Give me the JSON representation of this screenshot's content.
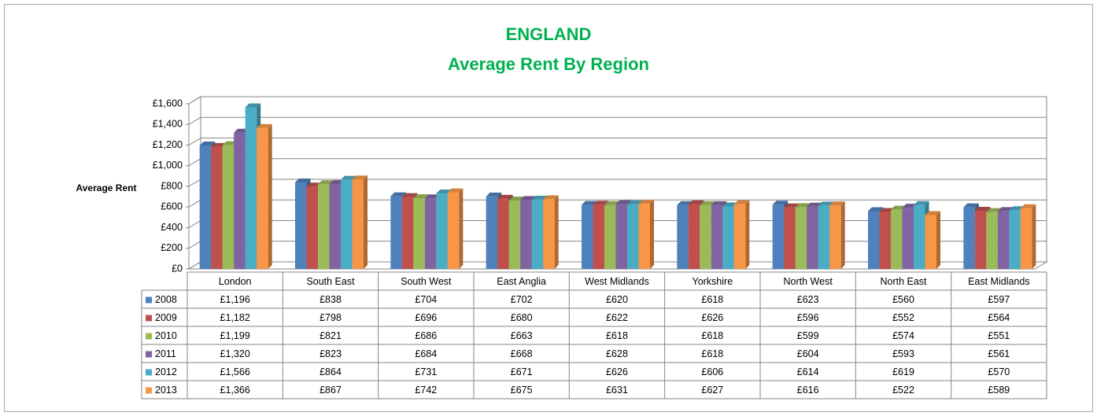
{
  "chart_data": {
    "type": "bar",
    "title": "ENGLAND",
    "subtitle": "Average Rent By Region",
    "y_label": "Average Rent",
    "categories": [
      "London",
      "South East",
      "South West",
      "East Anglia",
      "West Midlands",
      "Yorkshire",
      "North West",
      "North East",
      "East Midlands"
    ],
    "series": [
      {
        "name": "2008",
        "color": "#4f81bd",
        "values": [
          1196,
          838,
          704,
          702,
          620,
          618,
          623,
          560,
          597
        ],
        "value_labels": [
          "£1,196",
          "£838",
          "£704",
          "£702",
          "£620",
          "£618",
          "£623",
          "£560",
          "£597"
        ]
      },
      {
        "name": "2009",
        "color": "#c0504d",
        "values": [
          1182,
          798,
          696,
          680,
          622,
          626,
          596,
          552,
          564
        ],
        "value_labels": [
          "£1,182",
          "£798",
          "£696",
          "£680",
          "£622",
          "£626",
          "£596",
          "£552",
          "£564"
        ]
      },
      {
        "name": "2010",
        "color": "#9bbb59",
        "values": [
          1199,
          821,
          686,
          663,
          618,
          618,
          599,
          574,
          551
        ],
        "value_labels": [
          "£1,199",
          "£821",
          "£686",
          "£663",
          "£618",
          "£618",
          "£599",
          "£574",
          "£551"
        ]
      },
      {
        "name": "2011",
        "color": "#8064a2",
        "values": [
          1320,
          823,
          684,
          668,
          628,
          618,
          604,
          593,
          561
        ],
        "value_labels": [
          "£1,320",
          "£823",
          "£684",
          "£668",
          "£628",
          "£618",
          "£604",
          "£593",
          "£561"
        ]
      },
      {
        "name": "2012",
        "color": "#4bacc6",
        "values": [
          1566,
          864,
          731,
          671,
          626,
          606,
          614,
          619,
          570
        ],
        "value_labels": [
          "£1,566",
          "£864",
          "£731",
          "£671",
          "£626",
          "£606",
          "£614",
          "£619",
          "£570"
        ]
      },
      {
        "name": "2013",
        "color": "#f79646",
        "values": [
          1366,
          867,
          742,
          675,
          631,
          627,
          616,
          522,
          589
        ],
        "value_labels": [
          "£1,366",
          "£867",
          "£742",
          "£675",
          "£631",
          "£627",
          "£616",
          "£522",
          "£589"
        ]
      }
    ],
    "ylim": [
      0,
      1600
    ],
    "yticks": [
      {
        "value": 0,
        "label": "£0"
      },
      {
        "value": 200,
        "label": "£200"
      },
      {
        "value": 400,
        "label": "£400"
      },
      {
        "value": 600,
        "label": "£600"
      },
      {
        "value": 800,
        "label": "£800"
      },
      {
        "value": 1000,
        "label": "£1,000"
      },
      {
        "value": 1200,
        "label": "£1,200"
      },
      {
        "value": 1400,
        "label": "£1,400"
      },
      {
        "value": 1600,
        "label": "£1,600"
      }
    ],
    "grid": true
  }
}
